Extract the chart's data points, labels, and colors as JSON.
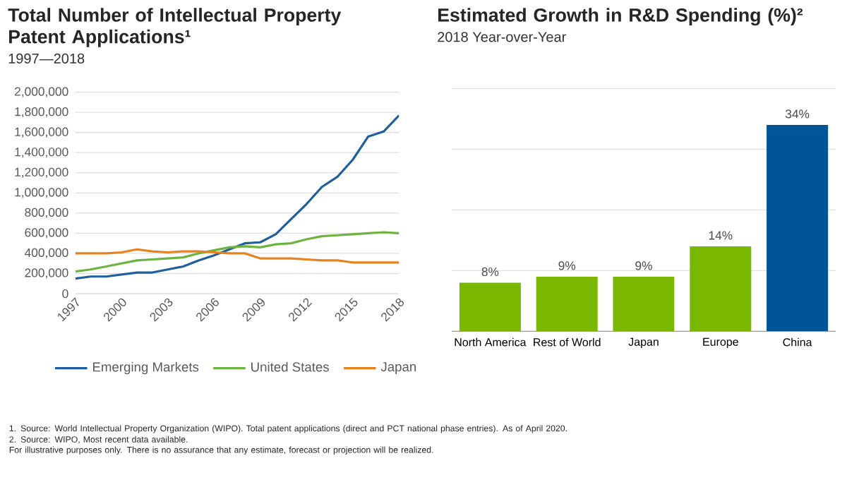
{
  "chart_data": [
    {
      "type": "line",
      "title": "Total Number of Intellectual Property Patent Applications¹",
      "subtitle": "1997—2018",
      "x": [
        1997,
        1998,
        1999,
        2000,
        2001,
        2002,
        2003,
        2004,
        2005,
        2006,
        2007,
        2008,
        2009,
        2010,
        2011,
        2012,
        2013,
        2014,
        2015,
        2016,
        2017,
        2018
      ],
      "series": [
        {
          "name": "Emerging Markets",
          "color": "#1f5f9e",
          "values": [
            150000,
            170000,
            170000,
            190000,
            210000,
            210000,
            240000,
            270000,
            330000,
            380000,
            440000,
            500000,
            510000,
            590000,
            740000,
            890000,
            1060000,
            1160000,
            1330000,
            1560000,
            1610000,
            1770000
          ]
        },
        {
          "name": "United States",
          "color": "#6db33f",
          "values": [
            220000,
            240000,
            270000,
            300000,
            330000,
            340000,
            350000,
            360000,
            400000,
            430000,
            460000,
            470000,
            460000,
            490000,
            500000,
            540000,
            570000,
            580000,
            590000,
            600000,
            610000,
            600000
          ]
        },
        {
          "name": "Japan",
          "color": "#e8821e",
          "values": [
            400000,
            400000,
            400000,
            410000,
            440000,
            420000,
            410000,
            420000,
            420000,
            410000,
            400000,
            400000,
            350000,
            350000,
            350000,
            340000,
            330000,
            330000,
            310000,
            310000,
            310000,
            310000
          ]
        }
      ],
      "xlim": [
        1997,
        2018
      ],
      "xticks": [
        1997,
        2000,
        2003,
        2006,
        2009,
        2012,
        2015,
        2018
      ],
      "ylim": [
        0,
        2000000
      ],
      "yticks": [
        {
          "value": 0,
          "label": "0"
        },
        {
          "value": 200000,
          "label": "200,000"
        },
        {
          "value": 400000,
          "label": "400,000"
        },
        {
          "value": 600000,
          "label": "600,000"
        },
        {
          "value": 800000,
          "label": "800,000"
        },
        {
          "value": 1000000,
          "label": "1,000,000"
        },
        {
          "value": 1200000,
          "label": "1,200,000"
        },
        {
          "value": 1400000,
          "label": "1,400,000"
        },
        {
          "value": 1600000,
          "label": "1,600,000"
        },
        {
          "value": 1800000,
          "label": "1,800,000"
        },
        {
          "value": 2000000,
          "label": "2,000,000"
        }
      ],
      "grid": "y",
      "legend": "bottom",
      "marker": "none",
      "line_style": "solid",
      "annotations": [
        "1.   Source: World Intellectual Property Organization (WIPO). Total patent applications (direct and PCT national phase entries). As of April 2020."
      ]
    },
    {
      "type": "bar",
      "title": "Estimated Growth in R&D Spending (%)²",
      "subtitle": "2018 Year-over-Year",
      "categories": [
        "North America",
        "Rest of World",
        "Japan",
        "Europe",
        "China"
      ],
      "values": [
        8,
        9,
        9,
        14,
        34
      ],
      "colors": [
        "#7ab800",
        "#7ab800",
        "#7ab800",
        "#7ab800",
        "#005596"
      ],
      "value_labels": [
        "8%",
        "9%",
        "9%",
        "14%",
        "34%"
      ],
      "ylim": [
        0,
        40
      ],
      "yticks": [
        {
          "value": 10,
          "label": null
        },
        {
          "value": 20,
          "label": null
        },
        {
          "value": 30,
          "label": null
        },
        {
          "value": 40,
          "label": null
        }
      ],
      "grid": "y",
      "tick_labels": "x",
      "annotations": [
        "2.   Source: WIPO, Most recent data available.",
        "For illustrative purposes only. There is no assurance that any estimate, forecast or projection will be realized."
      ]
    }
  ]
}
